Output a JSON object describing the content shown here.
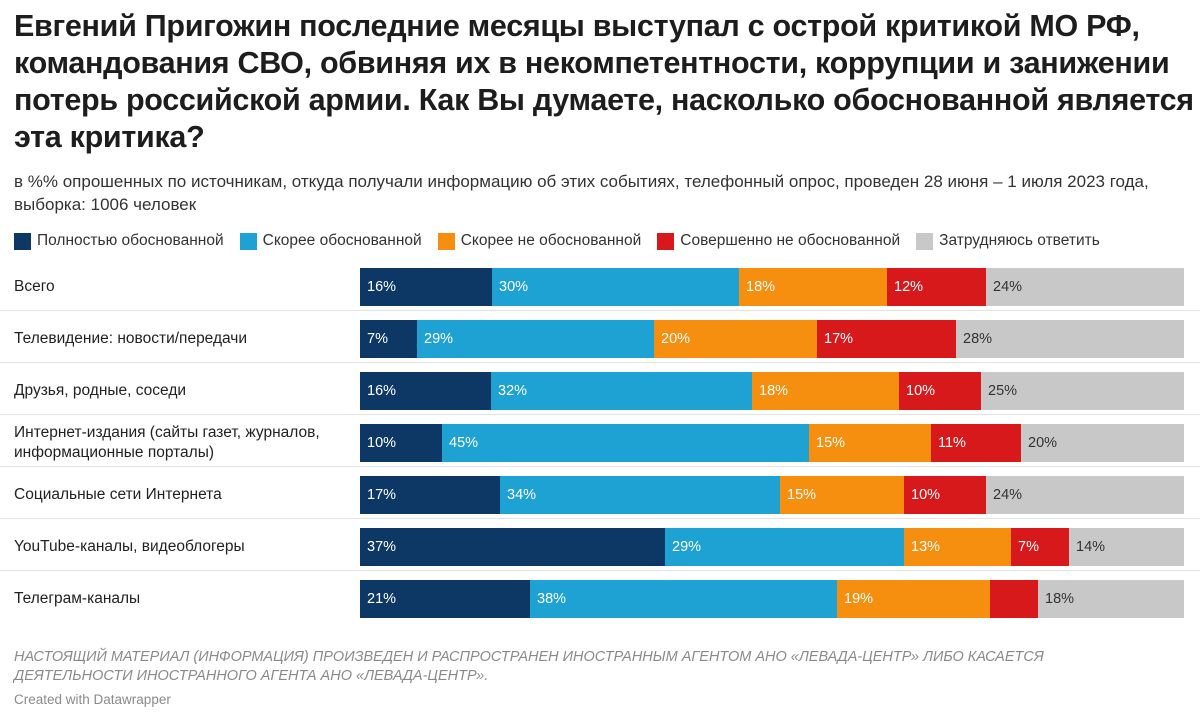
{
  "chart_data": {
    "type": "bar",
    "stacked": true,
    "orientation": "horizontal",
    "title": "Евгений Пригожин последние месяцы выступал с острой критикой МО РФ, командования СВО, обвиняя их в некомпетентности, коррупции и занижении потерь российской армии. Как Вы думаете, насколько обоснованной является эта критика?",
    "subtitle": "в %% опрошенных по источникам, откуда получали информацию об этих событиях, телефонный опрос, проведен 28 июня – 1 июля 2023 года, выборка: 1006 человек",
    "legend_position": "top",
    "categories": [
      "Всего",
      "Телевидение: новости/передачи",
      "Друзья, родные, соседи",
      "Интернет-издания (сайты газет, журналов, информационные порталы)",
      "Социальные сети Интернета",
      "YouTube-каналы, видеоблогеры",
      "Телеграм-каналы"
    ],
    "series": [
      {
        "name": "Полностью обоснованной",
        "color": "#0d3866",
        "text_color": "#ffffff",
        "values": [
          16,
          7,
          16,
          10,
          17,
          37,
          21
        ]
      },
      {
        "name": "Скорее обоснованной",
        "color": "#1ea2d4",
        "text_color": "#ffffff",
        "values": [
          30,
          29,
          32,
          45,
          34,
          29,
          38
        ]
      },
      {
        "name": "Скорее не обоснованной",
        "color": "#f68e0f",
        "text_color": "#ffffff",
        "values": [
          18,
          20,
          18,
          15,
          15,
          13,
          19
        ]
      },
      {
        "name": "Совершенно не обоснованной",
        "color": "#d7191c",
        "text_color": "#ffffff",
        "values": [
          12,
          17,
          10,
          11,
          10,
          7,
          6
        ]
      },
      {
        "name": "Затрудняюсь ответить",
        "color": "#c8c8c8",
        "text_color": "#333333",
        "values": [
          24,
          28,
          25,
          20,
          24,
          14,
          18
        ]
      }
    ],
    "data_labels": [
      [
        "16%",
        "30%",
        "18%",
        "12%",
        "24%"
      ],
      [
        "7%",
        "29%",
        "20%",
        "17%",
        "28%"
      ],
      [
        "16%",
        "32%",
        "18%",
        "10%",
        "25%"
      ],
      [
        "10%",
        "45%",
        "15%",
        "11%",
        "20%"
      ],
      [
        "17%",
        "34%",
        "15%",
        "10%",
        "24%"
      ],
      [
        "37%",
        "29%",
        "13%",
        "7%",
        "14%"
      ],
      [
        "21%",
        "38%",
        "19%",
        "",
        "18%"
      ]
    ]
  },
  "footnote": "НАСТОЯЩИЙ МАТЕРИАЛ (ИНФОРМАЦИЯ) ПРОИЗВЕДЕН И РАСПРОСТРАНЕН ИНОСТРАННЫМ АГЕНТОМ АНО «ЛЕВАДА-ЦЕНТР» ЛИБО КАСАЕТСЯ ДЕЯТЕЛЬНОСТИ ИНОСТРАННОГО АГЕНТА АНО «ЛЕВАДА-ЦЕНТР».",
  "credit": "Created with Datawrapper"
}
